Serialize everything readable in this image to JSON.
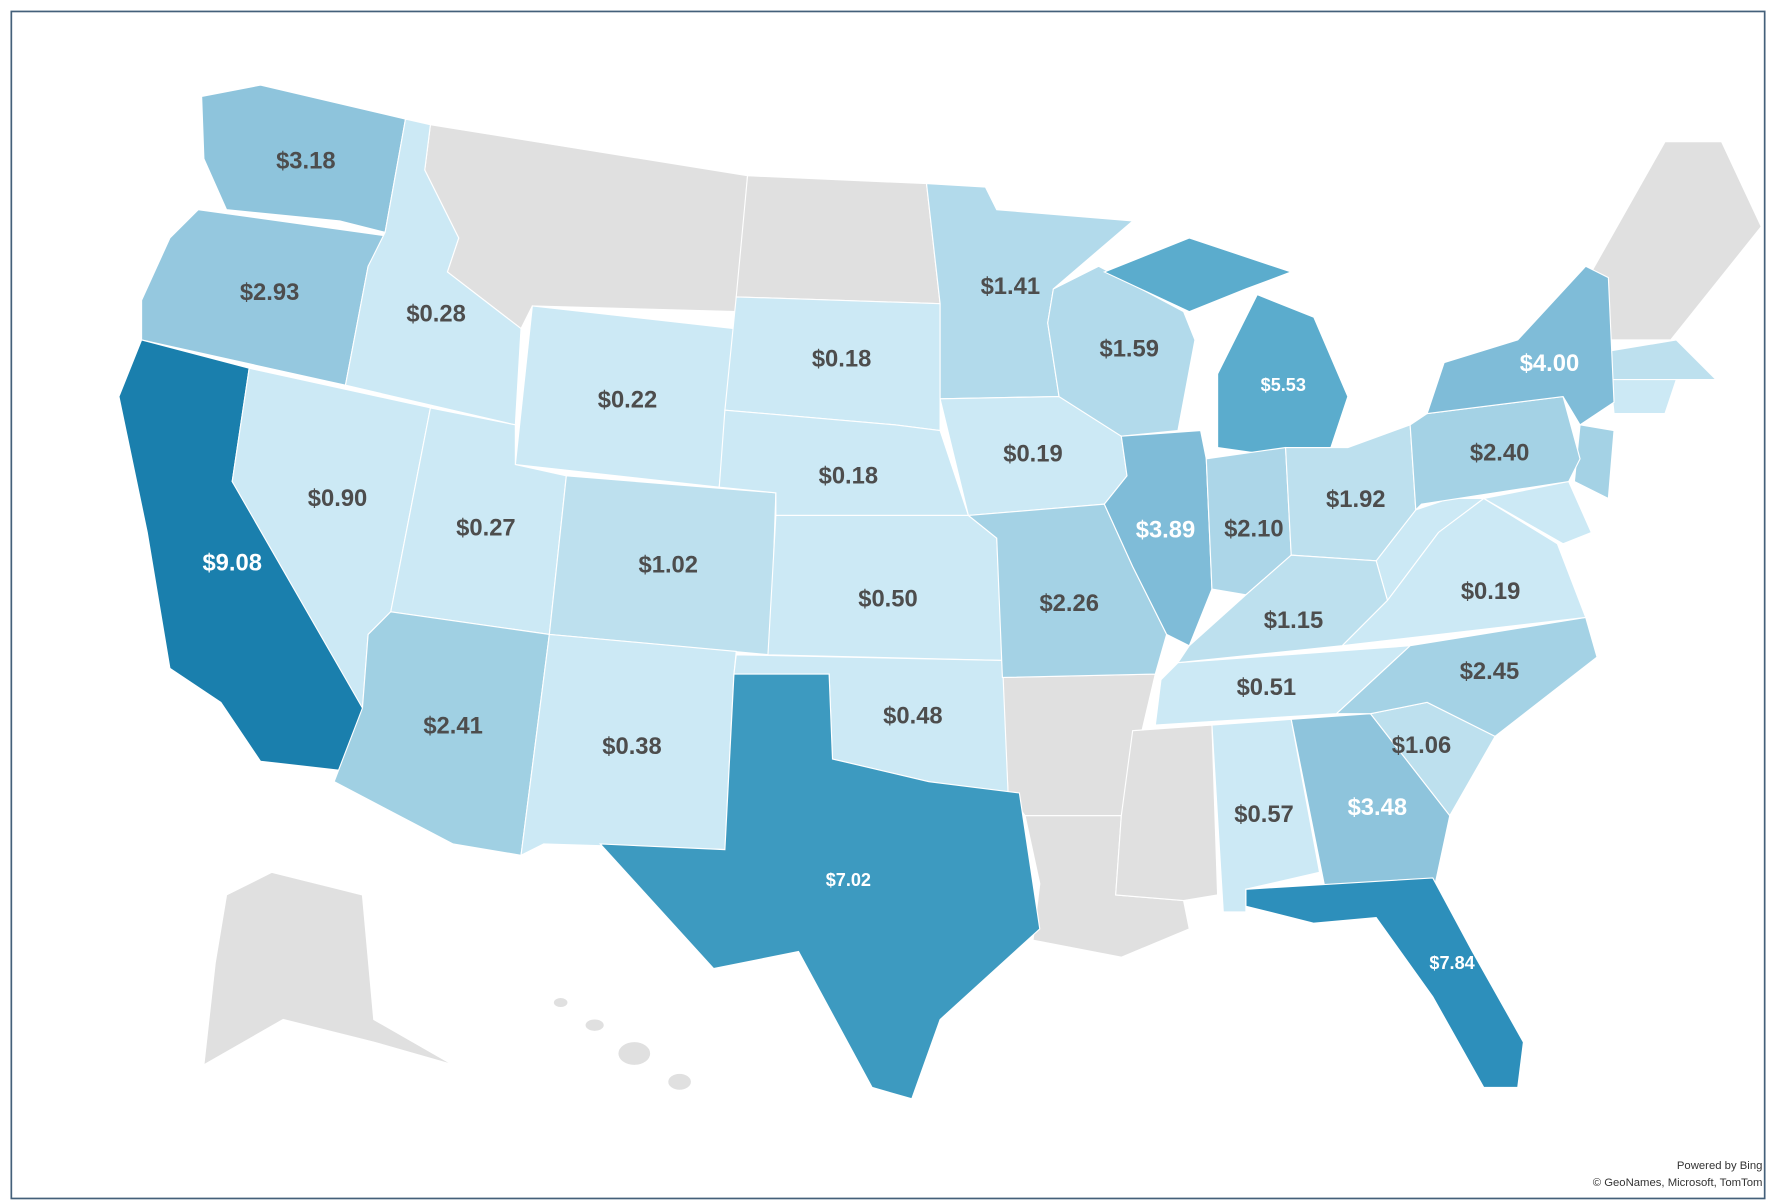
{
  "map": {
    "regions": [
      {
        "label": "$3.18",
        "color": "#8ec4dc"
      },
      {
        "label": "$2.93",
        "color": "#95c8df"
      },
      {
        "label": "$9.08",
        "color": "#1a7fad"
      },
      {
        "label": "$0.28",
        "color": "#cce9f5"
      },
      {
        "label": "$0.90",
        "color": "#cce9f5"
      },
      {
        "label": "$0.22",
        "color": "#cce9f5"
      },
      {
        "label": "$0.27",
        "color": "#cce9f5"
      },
      {
        "label": "$2.41",
        "color": "#a0d0e3"
      },
      {
        "label": "$1.02",
        "color": "#bde0ee"
      },
      {
        "label": "$0.38",
        "color": "#cce9f5"
      },
      {
        "label": "$0.18",
        "color": "#cce9f5"
      },
      {
        "label": "$0.18",
        "color": "#cce9f5"
      },
      {
        "label": "$0.50",
        "color": "#cce9f5"
      },
      {
        "label": "$0.48",
        "color": "#cce9f5"
      },
      {
        "label": "$7.02",
        "color": "#3d9ac0"
      },
      {
        "label": "$1.41",
        "color": "#b2daeb"
      },
      {
        "label": "$0.19",
        "color": "#cce9f5"
      },
      {
        "label": "$2.26",
        "color": "#a4d2e5"
      },
      {
        "label": "$1.59",
        "color": "#b2daeb"
      },
      {
        "label": "$3.89",
        "color": "#7fbcd8"
      },
      {
        "label": "$5.53",
        "color": "#5baccd"
      },
      {
        "label": "$2.10",
        "color": "#acd6e8"
      },
      {
        "label": "$1.92",
        "color": "#bde0ee"
      },
      {
        "label": "$1.15",
        "color": "#bde0ee"
      },
      {
        "label": "$0.51",
        "color": "#cce9f5"
      },
      {
        "label": "$0.57",
        "color": "#cce9f5"
      },
      {
        "label": "$3.48",
        "color": "#8ec4dc"
      },
      {
        "label": "$7.84",
        "color": "#2d8fbb"
      },
      {
        "label": "$1.06",
        "color": "#bde0ee"
      },
      {
        "label": "$2.45",
        "color": "#a4d2e5"
      },
      {
        "label": "$0.19",
        "color": "#cce9f5"
      },
      {
        "label": "$2.40",
        "color": "#a4d2e5"
      },
      {
        "label": "$4.00",
        "color": "#7fbcd8"
      }
    ],
    "no_data_color": "#e0e0e0",
    "attribution": [
      "Powered by Bing",
      "© GeoNames, Microsoft, TomTom"
    ]
  }
}
